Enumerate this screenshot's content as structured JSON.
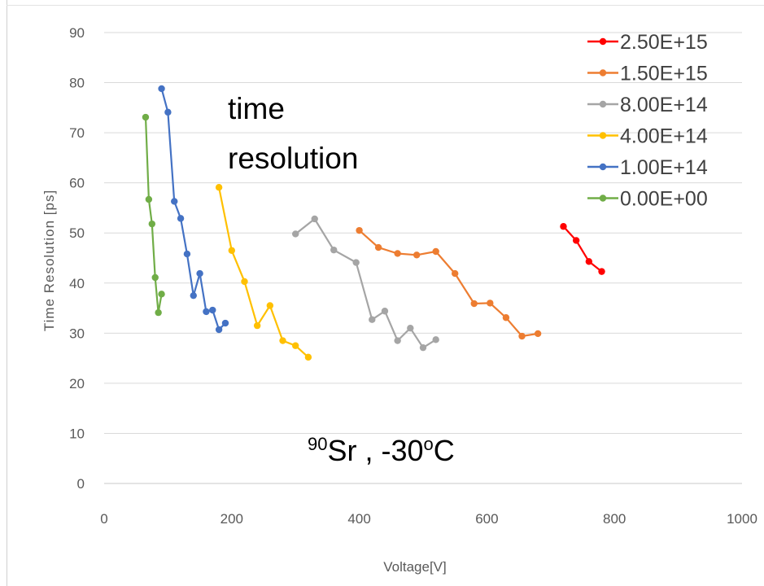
{
  "chart_data": {
    "type": "line",
    "xlabel": "Voltage[V]",
    "ylabel": "Time Resolution [ps]",
    "xlim": [
      0,
      1000
    ],
    "ylim": [
      0,
      90
    ],
    "xticks": [
      "0",
      "200",
      "400",
      "600",
      "800",
      "1000"
    ],
    "yticks": [
      "0",
      "10",
      "20",
      "30",
      "40",
      "50",
      "60",
      "70",
      "80",
      "90"
    ],
    "grid": "horizontal",
    "legend_position": "top-right",
    "annotations": {
      "line1": "time",
      "line2": "resolution",
      "isotope_mass": "90",
      "isotope_symbol": "Sr , -30",
      "degree": "o",
      "unit": "C"
    },
    "series": [
      {
        "name": "2.50E+15",
        "color": "#ff0000",
        "x": [
          720,
          740,
          760,
          780
        ],
        "y": [
          51.3,
          48.5,
          44.3,
          42.3
        ]
      },
      {
        "name": "1.50E+15",
        "color": "#ed7d31",
        "x": [
          400,
          430,
          460,
          490,
          520,
          550,
          580,
          605,
          630,
          655,
          680
        ],
        "y": [
          50.5,
          47.1,
          45.9,
          45.6,
          46.3,
          41.9,
          35.9,
          36.0,
          33.1,
          29.4,
          29.9
        ]
      },
      {
        "name": "8.00E+14",
        "color": "#a5a5a5",
        "x": [
          300,
          330,
          360,
          395,
          420,
          440,
          460,
          480,
          500,
          520
        ],
        "y": [
          49.8,
          52.8,
          46.6,
          44.1,
          32.7,
          34.4,
          28.5,
          31.0,
          27.1,
          28.7
        ]
      },
      {
        "name": "4.00E+14",
        "color": "#ffc000",
        "x": [
          180,
          200,
          220,
          240,
          260,
          280,
          300,
          320
        ],
        "y": [
          59.1,
          46.5,
          40.3,
          31.5,
          35.5,
          28.5,
          27.5,
          25.2
        ]
      },
      {
        "name": "1.00E+14",
        "color": "#4472c4",
        "x": [
          90,
          100,
          110,
          120,
          130,
          140,
          150,
          160,
          170,
          180,
          190
        ],
        "y": [
          78.8,
          74.1,
          56.3,
          52.9,
          45.8,
          37.5,
          41.9,
          34.3,
          34.6,
          30.7,
          32.0
        ]
      },
      {
        "name": "0.00E+00",
        "color": "#70ad47",
        "x": [
          65,
          70,
          75,
          80,
          85,
          90
        ],
        "y": [
          73.1,
          56.7,
          51.8,
          41.1,
          34.1,
          37.8
        ]
      }
    ]
  }
}
